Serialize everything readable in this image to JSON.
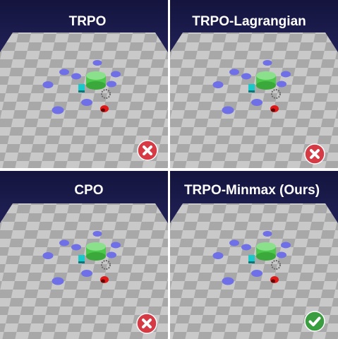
{
  "panels": [
    {
      "title": "TRPO"
    },
    {
      "title": "TRPO-Lagrangian"
    },
    {
      "title": "CPO"
    },
    {
      "title": "TRPO-Minmax (Ours)"
    }
  ]
}
